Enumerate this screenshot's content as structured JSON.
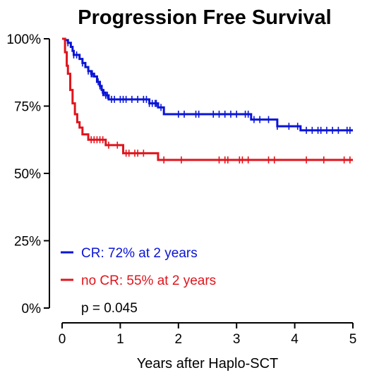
{
  "chart_data": {
    "type": "line",
    "step": true,
    "title": "Progression Free Survival",
    "xlabel": "Years after Haplo-SCT",
    "ylabel": "",
    "xlim": [
      0,
      5
    ],
    "ylim": [
      0,
      1
    ],
    "x_ticks": [
      0,
      1,
      2,
      3,
      4,
      5
    ],
    "x_tick_labels": [
      "0",
      "1",
      "2",
      "3",
      "4",
      "5"
    ],
    "y_ticks": [
      0,
      0.25,
      0.5,
      0.75,
      1.0
    ],
    "y_tick_labels": [
      "0%",
      "25%",
      "50%",
      "75%",
      "100%"
    ],
    "grid": false,
    "legend_position": "bottom-left",
    "annotation": "p = 0.045",
    "series": [
      {
        "name": "CR: 72% at 2 years",
        "color": "#0a14d6",
        "points": [
          [
            0,
            1.0
          ],
          [
            0.05,
            0.995
          ],
          [
            0.1,
            0.985
          ],
          [
            0.15,
            0.97
          ],
          [
            0.18,
            0.955
          ],
          [
            0.2,
            0.94
          ],
          [
            0.3,
            0.925
          ],
          [
            0.35,
            0.91
          ],
          [
            0.4,
            0.895
          ],
          [
            0.45,
            0.88
          ],
          [
            0.5,
            0.87
          ],
          [
            0.55,
            0.86
          ],
          [
            0.6,
            0.84
          ],
          [
            0.65,
            0.825
          ],
          [
            0.68,
            0.81
          ],
          [
            0.7,
            0.8
          ],
          [
            0.75,
            0.79
          ],
          [
            0.8,
            0.775
          ],
          [
            1.5,
            0.76
          ],
          [
            1.65,
            0.745
          ],
          [
            1.75,
            0.72
          ],
          [
            3.25,
            0.7
          ],
          [
            3.7,
            0.675
          ],
          [
            4.1,
            0.66
          ],
          [
            5.0,
            0.66
          ]
        ],
        "censors": [
          0.1,
          0.2,
          0.25,
          0.35,
          0.45,
          0.5,
          0.52,
          0.62,
          0.65,
          0.7,
          0.72,
          0.75,
          0.78,
          0.85,
          0.9,
          1.0,
          1.05,
          1.1,
          1.2,
          1.3,
          1.4,
          1.45,
          1.5,
          1.55,
          1.6,
          1.62,
          1.7,
          2.0,
          2.1,
          2.3,
          2.35,
          2.6,
          2.7,
          2.8,
          2.9,
          3.0,
          3.15,
          3.2,
          3.3,
          3.4,
          3.55,
          3.7,
          3.9,
          4.05,
          4.2,
          4.3,
          4.4,
          4.45,
          4.55,
          4.65,
          4.75,
          4.9,
          4.95
        ]
      },
      {
        "name": "no CR: 55% at 2 years",
        "color": "#e0141c",
        "points": [
          [
            0,
            1.0
          ],
          [
            0.05,
            0.95
          ],
          [
            0.08,
            0.9
          ],
          [
            0.1,
            0.87
          ],
          [
            0.14,
            0.81
          ],
          [
            0.18,
            0.76
          ],
          [
            0.22,
            0.72
          ],
          [
            0.26,
            0.69
          ],
          [
            0.3,
            0.67
          ],
          [
            0.35,
            0.645
          ],
          [
            0.45,
            0.625
          ],
          [
            0.75,
            0.605
          ],
          [
            1.05,
            0.575
          ],
          [
            1.65,
            0.55
          ],
          [
            5.0,
            0.55
          ]
        ],
        "censors": [
          0.5,
          0.55,
          0.6,
          0.65,
          0.7,
          0.8,
          0.95,
          1.1,
          1.15,
          1.25,
          1.3,
          1.4,
          1.75,
          2.05,
          2.7,
          2.8,
          2.85,
          3.05,
          3.1,
          3.2,
          3.55,
          3.65,
          4.2,
          4.5,
          4.85,
          4.95
        ]
      }
    ]
  }
}
